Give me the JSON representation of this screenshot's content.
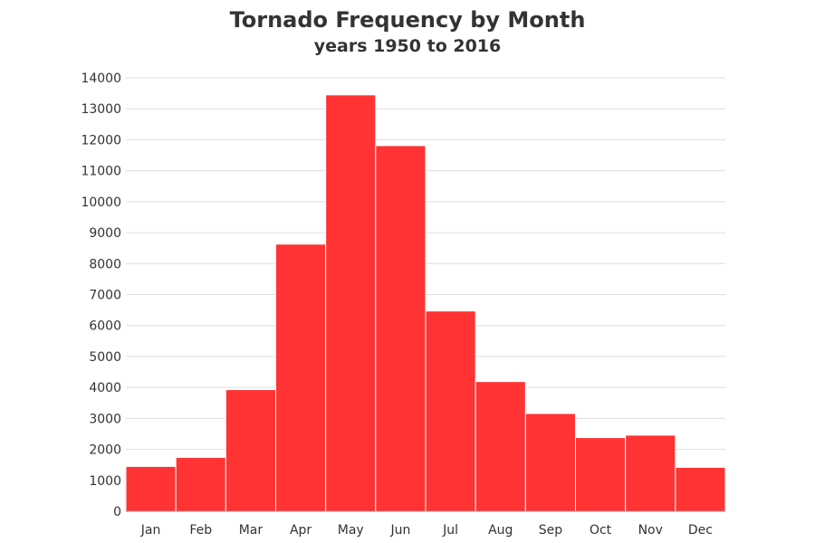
{
  "chart_data": {
    "type": "bar",
    "title": "Tornado Frequency by Month",
    "subtitle": "years 1950 to 2016",
    "xlabel": "",
    "ylabel": "",
    "categories": [
      "Jan",
      "Feb",
      "Mar",
      "Apr",
      "May",
      "Jun",
      "Jul",
      "Aug",
      "Sep",
      "Oct",
      "Nov",
      "Dec"
    ],
    "values": [
      1450,
      1740,
      3930,
      8630,
      13450,
      11810,
      6470,
      4190,
      3160,
      2380,
      2460,
      1420
    ],
    "ylim": [
      0,
      14000
    ],
    "yticks": [
      0,
      1000,
      2000,
      3000,
      4000,
      5000,
      6000,
      7000,
      8000,
      9000,
      10000,
      11000,
      12000,
      13000,
      14000
    ],
    "grid": true,
    "legend": "none",
    "colors": {
      "bar": "#ff3333",
      "bar_edge": "#ffffff",
      "grid": "#dddddd",
      "axis": "#999999",
      "text": "#333333"
    }
  }
}
